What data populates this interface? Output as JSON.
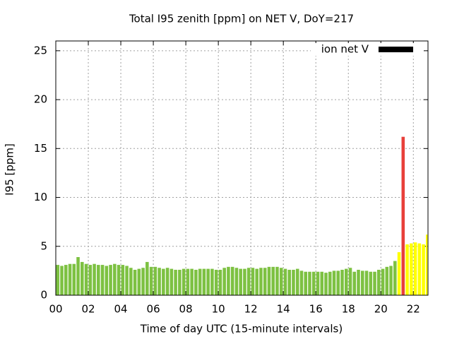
{
  "chart_data": {
    "type": "bar",
    "title": "Total I95 zenith [ppm] on NET V, DoY=217",
    "x_label": "Time of day UTC (15-minute intervals)",
    "y_label": "I95 [ppm]",
    "legend": "top-right",
    "grid": true,
    "xlim": [
      0,
      22.9
    ],
    "ylim": [
      0,
      26
    ],
    "xticks": [
      {
        "value": 0,
        "label": "00"
      },
      {
        "value": 2,
        "label": "02"
      },
      {
        "value": 4,
        "label": "04"
      },
      {
        "value": 6,
        "label": "06"
      },
      {
        "value": 8,
        "label": "08"
      },
      10,
      12,
      14,
      16,
      18,
      20,
      22
    ],
    "yticks": [
      0,
      5,
      10,
      15,
      20,
      25
    ],
    "x": [
      0,
      0.25,
      0.5,
      0.75,
      1,
      1.25,
      1.5,
      1.75,
      2,
      2.25,
      2.5,
      2.75,
      3,
      3.25,
      3.5,
      3.75,
      4,
      4.25,
      4.5,
      4.75,
      5,
      5.25,
      5.5,
      5.75,
      6,
      6.25,
      6.5,
      6.75,
      7,
      7.25,
      7.5,
      7.75,
      8,
      8.25,
      8.5,
      8.75,
      9,
      9.25,
      9.5,
      9.75,
      10,
      10.25,
      10.5,
      10.75,
      11,
      11.25,
      11.5,
      11.75,
      12,
      12.25,
      12.5,
      12.75,
      13,
      13.25,
      13.5,
      13.75,
      14,
      14.25,
      14.5,
      14.75,
      15,
      15.25,
      15.5,
      15.75,
      16,
      16.25,
      16.5,
      16.75,
      17,
      17.25,
      17.5,
      17.75,
      18,
      18.25,
      18.5,
      18.75,
      19,
      19.25,
      19.5,
      19.75,
      20,
      20.25,
      20.5,
      20.75,
      21,
      21.25,
      21.5,
      21.75,
      22,
      22.25,
      22.5,
      22.75
    ],
    "series": [
      {
        "name": "ion net V",
        "color": "#000000",
        "values": [
          3.1,
          3.0,
          3.1,
          3.2,
          3.2,
          3.9,
          3.4,
          3.2,
          3.1,
          3.2,
          3.1,
          3.1,
          3.0,
          3.1,
          3.2,
          3.1,
          3.1,
          3.0,
          2.8,
          2.6,
          2.7,
          2.8,
          3.4,
          2.9,
          2.9,
          2.8,
          2.7,
          2.8,
          2.7,
          2.6,
          2.6,
          2.7,
          2.7,
          2.7,
          2.6,
          2.7,
          2.7,
          2.7,
          2.7,
          2.6,
          2.6,
          2.8,
          2.9,
          2.9,
          2.8,
          2.7,
          2.7,
          2.8,
          2.8,
          2.7,
          2.8,
          2.8,
          2.9,
          2.9,
          2.9,
          2.8,
          2.7,
          2.6,
          2.6,
          2.7,
          2.5,
          2.4,
          2.4,
          2.4,
          2.4,
          2.4,
          2.3,
          2.4,
          2.5,
          2.5,
          2.6,
          2.7,
          2.8,
          2.4,
          2.6,
          2.5,
          2.5,
          2.4,
          2.4,
          2.6,
          2.7,
          2.9,
          3.0,
          3.5,
          4.4,
          16.2,
          5.2,
          5.3,
          5.4,
          5.3,
          5.2,
          6.2
        ],
        "colors": [
          "#7dc142",
          "#7dc142",
          "#7dc142",
          "#7dc142",
          "#7dc142",
          "#7dc142",
          "#7dc142",
          "#7dc142",
          "#7dc142",
          "#7dc142",
          "#7dc142",
          "#7dc142",
          "#7dc142",
          "#7dc142",
          "#7dc142",
          "#7dc142",
          "#7dc142",
          "#7dc142",
          "#7dc142",
          "#7dc142",
          "#7dc142",
          "#7dc142",
          "#7dc142",
          "#7dc142",
          "#7dc142",
          "#7dc142",
          "#7dc142",
          "#7dc142",
          "#7dc142",
          "#7dc142",
          "#7dc142",
          "#7dc142",
          "#7dc142",
          "#7dc142",
          "#7dc142",
          "#7dc142",
          "#7dc142",
          "#7dc142",
          "#7dc142",
          "#7dc142",
          "#7dc142",
          "#7dc142",
          "#7dc142",
          "#7dc142",
          "#7dc142",
          "#7dc142",
          "#7dc142",
          "#7dc142",
          "#7dc142",
          "#7dc142",
          "#7dc142",
          "#7dc142",
          "#7dc142",
          "#7dc142",
          "#7dc142",
          "#7dc142",
          "#7dc142",
          "#7dc142",
          "#7dc142",
          "#7dc142",
          "#7dc142",
          "#7dc142",
          "#7dc142",
          "#7dc142",
          "#7dc142",
          "#7dc142",
          "#7dc142",
          "#7dc142",
          "#7dc142",
          "#7dc142",
          "#7dc142",
          "#7dc142",
          "#7dc142",
          "#7dc142",
          "#7dc142",
          "#7dc142",
          "#7dc142",
          "#7dc142",
          "#7dc142",
          "#7dc142",
          "#7dc142",
          "#7dc142",
          "#7dc142",
          "#7dc142",
          "#ffff00",
          "#e8403a",
          "#ffff00",
          "#ffff00",
          "#ffff00",
          "#ffff00",
          "#ffff00",
          "#ffff00"
        ]
      }
    ]
  }
}
